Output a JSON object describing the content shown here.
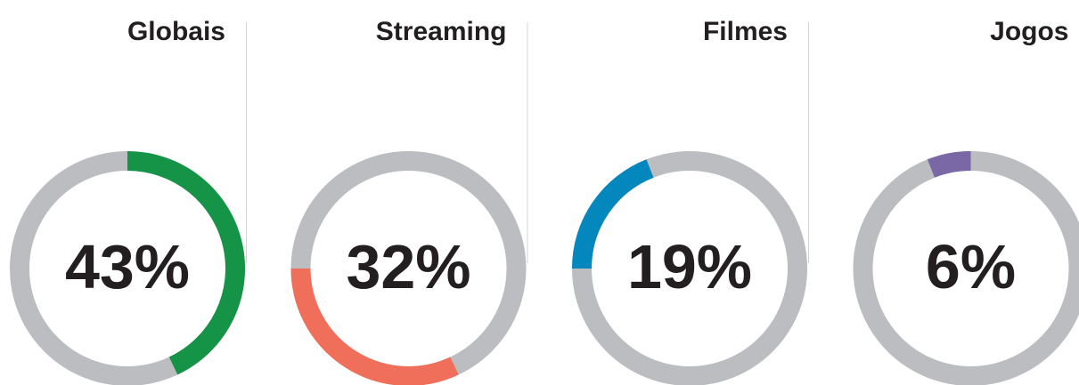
{
  "chart_data": {
    "type": "donut",
    "categories": [
      "Globais",
      "Streaming",
      "Filmes",
      "Jogos"
    ],
    "values": [
      43,
      32,
      19,
      6
    ],
    "value_labels": [
      "43%",
      "32%",
      "19%",
      "6%"
    ],
    "colors": [
      "#159447",
      "#f06f5a",
      "#0487bd",
      "#7a68a6"
    ],
    "track_color": "#bcbdc1"
  }
}
